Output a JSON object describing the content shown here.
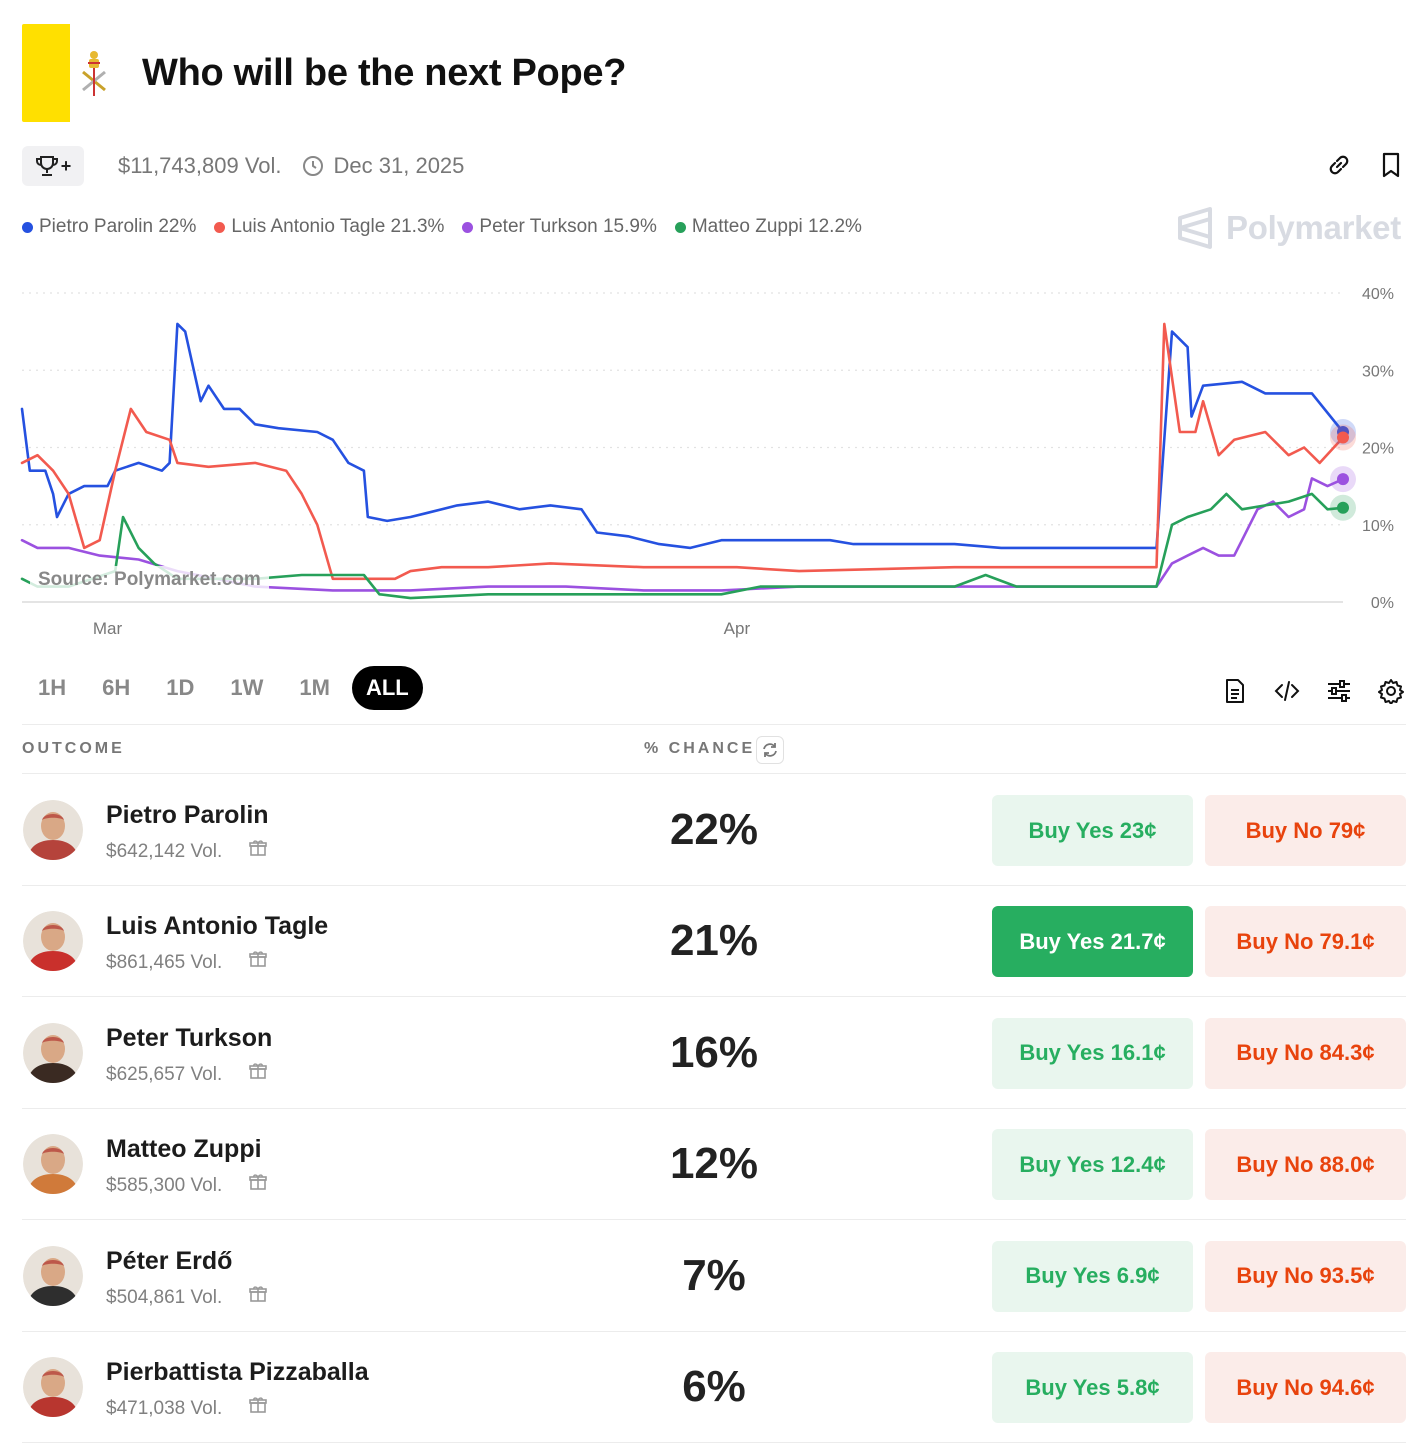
{
  "market": {
    "title": "Who will be the next Pope?",
    "volume": "$11,743,809 Vol.",
    "end_date": "Dec 31, 2025"
  },
  "legend": [
    {
      "label": "Pietro Parolin 22%",
      "color": "#2551e0"
    },
    {
      "label": "Luis Antonio Tagle 21.3%",
      "color": "#f25a4f"
    },
    {
      "label": "Peter Turkson 15.9%",
      "color": "#9b51e0"
    },
    {
      "label": "Matteo Zuppi 12.2%",
      "color": "#27a05a"
    }
  ],
  "watermark": "Polymarket",
  "source_label": "Source: Polymarket.com",
  "time_ranges": [
    "1H",
    "6H",
    "1D",
    "1W",
    "1M",
    "ALL"
  ],
  "active_range": "ALL",
  "table": {
    "outcome_header": "OUTCOME",
    "chance_header": "% CHANCE"
  },
  "outcomes": [
    {
      "name": "Pietro Parolin",
      "volume": "$642,142 Vol.",
      "chance": "22%",
      "yes": "Buy Yes 23¢",
      "no": "Buy No 79¢",
      "avatar_color": "#b5433b"
    },
    {
      "name": "Luis Antonio Tagle",
      "volume": "$861,465 Vol.",
      "chance": "21%",
      "yes": "Buy Yes 21.7¢",
      "no": "Buy No 79.1¢",
      "avatar_color": "#c9302c"
    },
    {
      "name": "Peter Turkson",
      "volume": "$625,657 Vol.",
      "chance": "16%",
      "yes": "Buy Yes 16.1¢",
      "no": "Buy No 84.3¢",
      "avatar_color": "#3a2a22"
    },
    {
      "name": "Matteo Zuppi",
      "volume": "$585,300 Vol.",
      "chance": "12%",
      "yes": "Buy Yes 12.4¢",
      "no": "Buy No 88.0¢",
      "avatar_color": "#d07a3a"
    },
    {
      "name": "Péter Erdő",
      "volume": "$504,861 Vol.",
      "chance": "7%",
      "yes": "Buy Yes 6.9¢",
      "no": "Buy No 93.5¢",
      "avatar_color": "#2e2e2e"
    },
    {
      "name": "Pierbattista Pizzaballa",
      "volume": "$471,038 Vol.",
      "chance": "6%",
      "yes": "Buy Yes 5.8¢",
      "no": "Buy No 94.6¢",
      "avatar_color": "#b8362f"
    }
  ],
  "chart_data": {
    "type": "line",
    "x_tick_labels": [
      {
        "label": "Mar",
        "t": 11
      },
      {
        "label": "Apr",
        "t": 92
      }
    ],
    "y_ticks": [
      0,
      10,
      20,
      30,
      40
    ],
    "y_tick_labels": [
      "0%",
      "10%",
      "20%",
      "30%",
      "40%"
    ],
    "ylim": [
      0,
      40
    ],
    "xlim": [
      0,
      170
    ],
    "grid": true,
    "series": [
      {
        "name": "Pietro Parolin",
        "color": "#2551e0",
        "points": [
          [
            0,
            25
          ],
          [
            1,
            17
          ],
          [
            3,
            17
          ],
          [
            4,
            14
          ],
          [
            4.5,
            11
          ],
          [
            6,
            14
          ],
          [
            8,
            15
          ],
          [
            11,
            15
          ],
          [
            12,
            17
          ],
          [
            15,
            18
          ],
          [
            18,
            17
          ],
          [
            19,
            18
          ],
          [
            20,
            36
          ],
          [
            21,
            35
          ],
          [
            23,
            26
          ],
          [
            24,
            28
          ],
          [
            26,
            25
          ],
          [
            28,
            25
          ],
          [
            30,
            23
          ],
          [
            33,
            22.5
          ],
          [
            38,
            22
          ],
          [
            40,
            21
          ],
          [
            42,
            18
          ],
          [
            44,
            17
          ],
          [
            44.5,
            11
          ],
          [
            47,
            10.5
          ],
          [
            50,
            11
          ],
          [
            52,
            11.5
          ],
          [
            56,
            12.5
          ],
          [
            60,
            13
          ],
          [
            64,
            12
          ],
          [
            68,
            12.5
          ],
          [
            72,
            12
          ],
          [
            74,
            9
          ],
          [
            78,
            8.5
          ],
          [
            82,
            7.5
          ],
          [
            86,
            7
          ],
          [
            90,
            8
          ],
          [
            104,
            8
          ],
          [
            107,
            7.5
          ],
          [
            110,
            7.5
          ],
          [
            120,
            7.5
          ],
          [
            126,
            7
          ],
          [
            146,
            7
          ],
          [
            148,
            35
          ],
          [
            150,
            33
          ],
          [
            150.5,
            24
          ],
          [
            152,
            28
          ],
          [
            157,
            28.5
          ],
          [
            160,
            27
          ],
          [
            166,
            27
          ],
          [
            170,
            22
          ]
        ]
      },
      {
        "name": "Luis Antonio Tagle",
        "color": "#f25a4f",
        "points": [
          [
            0,
            18
          ],
          [
            2,
            19
          ],
          [
            4,
            17
          ],
          [
            6,
            14
          ],
          [
            8,
            7
          ],
          [
            10,
            8
          ],
          [
            12,
            17
          ],
          [
            14,
            25
          ],
          [
            16,
            22
          ],
          [
            19,
            21
          ],
          [
            20,
            18
          ],
          [
            24,
            17.5
          ],
          [
            30,
            18
          ],
          [
            34,
            17
          ],
          [
            36,
            14
          ],
          [
            38,
            10
          ],
          [
            40,
            3
          ],
          [
            44,
            3
          ],
          [
            48,
            3
          ],
          [
            50,
            4
          ],
          [
            54,
            4.5
          ],
          [
            60,
            4.5
          ],
          [
            68,
            5
          ],
          [
            80,
            4.5
          ],
          [
            92,
            4.5
          ],
          [
            100,
            4
          ],
          [
            120,
            4.5
          ],
          [
            146,
            4.5
          ],
          [
            147,
            36
          ],
          [
            149,
            22
          ],
          [
            151,
            22
          ],
          [
            152,
            26
          ],
          [
            154,
            19
          ],
          [
            156,
            21
          ],
          [
            160,
            22
          ],
          [
            163,
            19
          ],
          [
            165,
            20
          ],
          [
            167,
            18
          ],
          [
            170,
            21.3
          ]
        ]
      },
      {
        "name": "Peter Turkson",
        "color": "#9b51e0",
        "points": [
          [
            0,
            8
          ],
          [
            2,
            7
          ],
          [
            4,
            7
          ],
          [
            6,
            7
          ],
          [
            10,
            6
          ],
          [
            15,
            5.5
          ],
          [
            20,
            4
          ],
          [
            25,
            3
          ],
          [
            30,
            2
          ],
          [
            40,
            1.5
          ],
          [
            50,
            1.5
          ],
          [
            60,
            2
          ],
          [
            70,
            2
          ],
          [
            80,
            1.5
          ],
          [
            90,
            1.5
          ],
          [
            100,
            2
          ],
          [
            110,
            2
          ],
          [
            120,
            2
          ],
          [
            130,
            2
          ],
          [
            140,
            2
          ],
          [
            146,
            2
          ],
          [
            148,
            5
          ],
          [
            150,
            6
          ],
          [
            152,
            7
          ],
          [
            154,
            6
          ],
          [
            156,
            6
          ],
          [
            157,
            8
          ],
          [
            159,
            12
          ],
          [
            161,
            13
          ],
          [
            163,
            11
          ],
          [
            165,
            12
          ],
          [
            166,
            16
          ],
          [
            168,
            15
          ],
          [
            170,
            15.9
          ]
        ]
      },
      {
        "name": "Matteo Zuppi",
        "color": "#27a05a",
        "points": [
          [
            0,
            3
          ],
          [
            2,
            2
          ],
          [
            6,
            2
          ],
          [
            12,
            4
          ],
          [
            13,
            11
          ],
          [
            15,
            7
          ],
          [
            17,
            5
          ],
          [
            20,
            3
          ],
          [
            30,
            3
          ],
          [
            36,
            3.5
          ],
          [
            44,
            3.5
          ],
          [
            46,
            1
          ],
          [
            50,
            0.5
          ],
          [
            60,
            1
          ],
          [
            70,
            1
          ],
          [
            80,
            1
          ],
          [
            90,
            1
          ],
          [
            95,
            2
          ],
          [
            100,
            2
          ],
          [
            110,
            2
          ],
          [
            120,
            2
          ],
          [
            124,
            3.5
          ],
          [
            128,
            2
          ],
          [
            132,
            2
          ],
          [
            140,
            2
          ],
          [
            146,
            2
          ],
          [
            148,
            10
          ],
          [
            150,
            11
          ],
          [
            153,
            12
          ],
          [
            155,
            14
          ],
          [
            157,
            12
          ],
          [
            160,
            12.5
          ],
          [
            163,
            13
          ],
          [
            166,
            14
          ],
          [
            168,
            12
          ],
          [
            170,
            12.2
          ]
        ]
      }
    ]
  }
}
